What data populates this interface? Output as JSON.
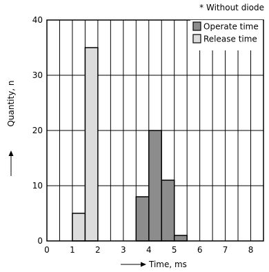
{
  "chart_data": {
    "type": "bar",
    "annotation": "* Without diode",
    "xlabel": "Time, ms",
    "ylabel": "Quantity, n",
    "xlim": [
      0,
      8.5
    ],
    "ylim": [
      0,
      40
    ],
    "x_ticks": [
      0,
      1,
      2,
      3,
      4,
      5,
      6,
      7,
      8
    ],
    "y_ticks": [
      0,
      10,
      20,
      30,
      40
    ],
    "bin_width": 0.5,
    "grid": true,
    "legend": "top-right",
    "series": [
      {
        "name": "Operate time",
        "color": "#8c8c8c",
        "bins": [
          {
            "x": 3.5,
            "value": 8
          },
          {
            "x": 4.0,
            "value": 20
          },
          {
            "x": 4.5,
            "value": 11
          },
          {
            "x": 5.0,
            "value": 1
          }
        ]
      },
      {
        "name": "Release time",
        "color": "#dcdcdc",
        "bins": [
          {
            "x": 1.0,
            "value": 5
          },
          {
            "x": 1.5,
            "value": 35
          }
        ]
      }
    ]
  }
}
